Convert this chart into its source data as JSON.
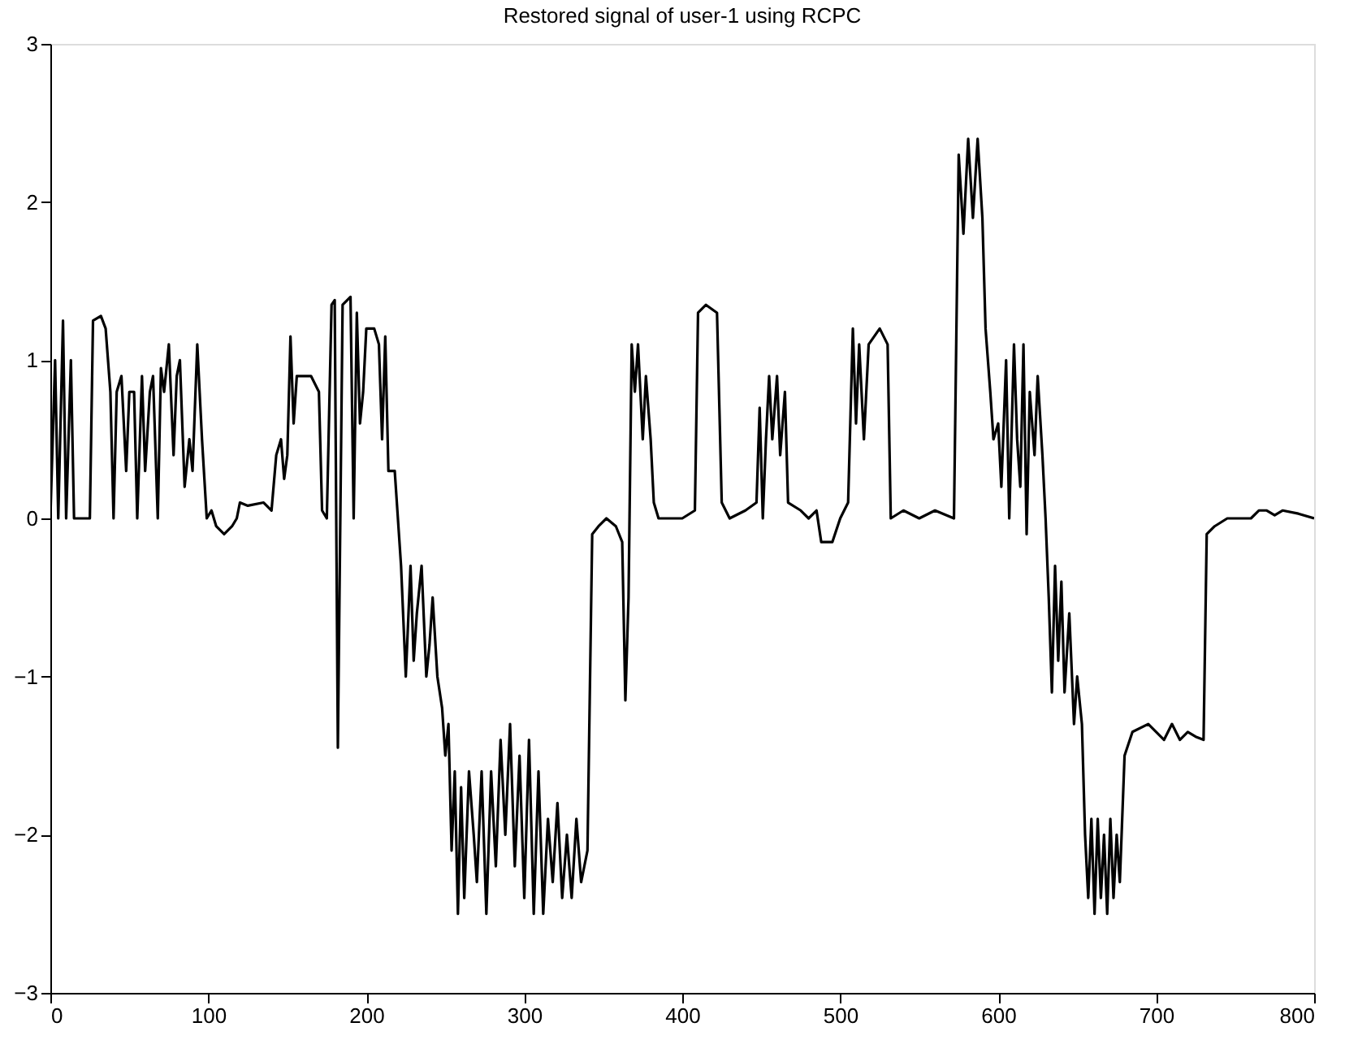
{
  "chart_data": {
    "type": "line",
    "title": "Restored signal of user-1 using RCPC",
    "xlim": [
      0,
      800
    ],
    "xticks": [
      0,
      100,
      200,
      300,
      400,
      500,
      600,
      700,
      800
    ],
    "ylim": [
      -3,
      3
    ],
    "yticks": [
      -3,
      -2,
      -1,
      0,
      1,
      2,
      3
    ],
    "grid": false,
    "marker": "none",
    "line_style": "solid",
    "x": [
      0,
      3,
      5,
      8,
      10,
      13,
      15,
      25,
      27,
      32,
      35,
      38,
      40,
      42,
      45,
      48,
      50,
      53,
      55,
      58,
      60,
      63,
      65,
      68,
      70,
      72,
      75,
      78,
      80,
      82,
      85,
      88,
      90,
      93,
      96,
      99,
      102,
      105,
      110,
      115,
      118,
      120,
      125,
      135,
      140,
      143,
      146,
      148,
      150,
      152,
      154,
      156,
      165,
      170,
      172,
      175,
      178,
      180,
      182,
      185,
      190,
      192,
      194,
      196,
      198,
      200,
      205,
      208,
      210,
      212,
      214,
      218,
      220,
      222,
      225,
      228,
      230,
      232,
      235,
      238,
      240,
      242,
      245,
      248,
      250,
      252,
      254,
      256,
      258,
      260,
      262,
      265,
      268,
      270,
      273,
      276,
      279,
      282,
      285,
      288,
      291,
      294,
      297,
      300,
      303,
      306,
      309,
      312,
      315,
      318,
      321,
      324,
      327,
      330,
      333,
      336,
      340,
      343,
      347,
      352,
      358,
      362,
      364,
      366,
      368,
      370,
      372,
      375,
      377,
      380,
      382,
      385,
      395,
      400,
      408,
      410,
      415,
      422,
      425,
      430,
      440,
      447,
      449,
      451,
      453,
      455,
      457,
      460,
      462,
      465,
      467,
      475,
      480,
      485,
      488,
      495,
      500,
      505,
      508,
      510,
      512,
      515,
      518,
      525,
      530,
      532,
      540,
      550,
      560,
      572,
      575,
      578,
      581,
      584,
      587,
      590,
      592,
      595,
      597,
      600,
      602,
      605,
      607,
      610,
      612,
      614,
      616,
      618,
      620,
      623,
      625,
      628,
      630,
      632,
      634,
      636,
      638,
      640,
      642,
      645,
      648,
      650,
      653,
      655,
      657,
      659,
      661,
      663,
      665,
      667,
      669,
      671,
      673,
      675,
      677,
      680,
      685,
      695,
      700,
      705,
      710,
      715,
      720,
      725,
      730,
      732,
      737,
      745,
      750,
      760,
      765,
      770,
      775,
      780,
      790,
      800
    ],
    "series": [
      {
        "color": "#000000",
        "values": [
          0,
          1.0,
          0,
          1.25,
          0,
          1.0,
          0,
          0,
          1.25,
          1.28,
          1.2,
          0.8,
          0,
          0.8,
          0.9,
          0.3,
          0.8,
          0.8,
          0,
          0.9,
          0.3,
          0.8,
          0.9,
          0,
          0.95,
          0.8,
          1.1,
          0.4,
          0.9,
          1.0,
          0.2,
          0.5,
          0.3,
          1.1,
          0.5,
          0,
          0.05,
          -0.05,
          -0.1,
          -0.05,
          0,
          0.1,
          0.08,
          0.1,
          0.05,
          0.4,
          0.5,
          0.25,
          0.4,
          1.15,
          0.6,
          0.9,
          0.9,
          0.8,
          0.05,
          0,
          1.35,
          1.38,
          -1.45,
          1.35,
          1.4,
          0,
          1.3,
          0.6,
          0.8,
          1.2,
          1.2,
          1.1,
          0.5,
          1.15,
          0.3,
          0.3,
          0,
          -0.3,
          -1.0,
          -0.3,
          -0.9,
          -0.6,
          -0.3,
          -1.0,
          -0.8,
          -0.5,
          -1.0,
          -1.2,
          -1.5,
          -1.3,
          -2.1,
          -1.6,
          -2.5,
          -1.7,
          -2.4,
          -1.6,
          -2.0,
          -2.3,
          -1.6,
          -2.5,
          -1.6,
          -2.2,
          -1.4,
          -2.0,
          -1.3,
          -2.2,
          -1.5,
          -2.4,
          -1.4,
          -2.5,
          -1.6,
          -2.5,
          -1.9,
          -2.3,
          -1.8,
          -2.4,
          -2.0,
          -2.4,
          -1.9,
          -2.3,
          -2.1,
          -0.1,
          -0.05,
          0,
          -0.05,
          -0.15,
          -1.15,
          -0.5,
          1.1,
          0.8,
          1.1,
          0.5,
          0.9,
          0.5,
          0.1,
          0,
          0,
          0,
          0.05,
          1.3,
          1.35,
          1.3,
          0.1,
          0,
          0.05,
          0.1,
          0.7,
          0,
          0.5,
          0.9,
          0.5,
          0.9,
          0.4,
          0.8,
          0.1,
          0.05,
          0,
          0.05,
          -0.15,
          -0.15,
          0,
          0.1,
          1.2,
          0.6,
          1.1,
          0.5,
          1.1,
          1.2,
          1.1,
          0,
          0.05,
          0,
          0.05,
          0,
          2.3,
          1.8,
          2.4,
          1.9,
          2.4,
          1.9,
          1.2,
          0.8,
          0.5,
          0.6,
          0.2,
          1.0,
          0,
          1.1,
          0.5,
          0.2,
          1.1,
          -0.1,
          0.8,
          0.4,
          0.9,
          0.4,
          0,
          -0.5,
          -1.1,
          -0.3,
          -0.9,
          -0.4,
          -1.1,
          -0.6,
          -1.3,
          -1.0,
          -1.3,
          -2.0,
          -2.4,
          -1.9,
          -2.5,
          -1.9,
          -2.4,
          -2.0,
          -2.5,
          -1.9,
          -2.4,
          -2.0,
          -2.3,
          -1.5,
          -1.35,
          -1.3,
          -1.35,
          -1.4,
          -1.3,
          -1.4,
          -1.35,
          -1.38,
          -1.4,
          -0.1,
          -0.05,
          0,
          0,
          0,
          0.05,
          0.05,
          0.02,
          0.05,
          0.03,
          0
        ]
      }
    ]
  }
}
